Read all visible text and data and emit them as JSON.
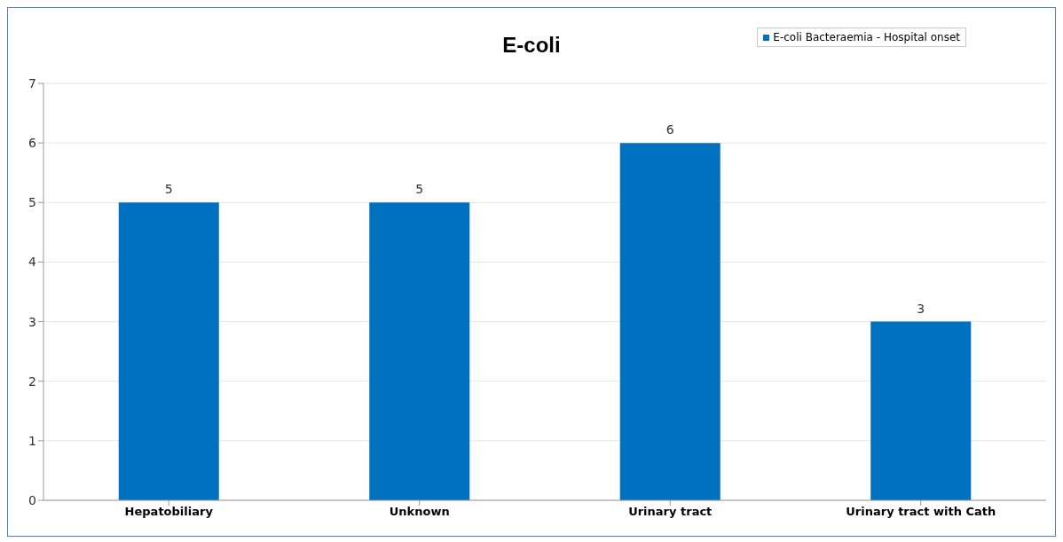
{
  "chart_data": {
    "type": "bar",
    "title": "E-coli",
    "categories": [
      "Hepatobiliary",
      "Unknown",
      "Urinary tract",
      "Urinary tract with Cath"
    ],
    "series": [
      {
        "name": "E-coli Bacteraemia - Hospital onset",
        "color": "#0070c0",
        "values": [
          5,
          5,
          6,
          3
        ]
      }
    ],
    "ylim": [
      0,
      7
    ],
    "yticks": [
      0,
      1,
      2,
      3,
      4,
      5,
      6,
      7
    ],
    "grid": "y",
    "legend": "top right",
    "data_labels": true
  }
}
